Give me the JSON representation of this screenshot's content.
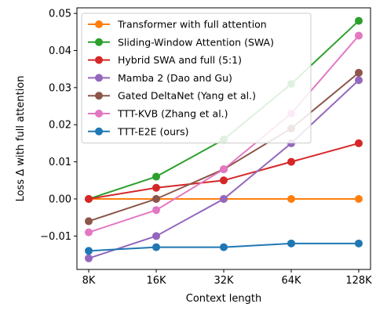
{
  "chart_data": {
    "type": "line",
    "xlabel": "Context length",
    "ylabel": "Loss Δ with full attention",
    "categories": [
      "8K",
      "16K",
      "32K",
      "64K",
      "128K"
    ],
    "ylim": [
      -0.019,
      0.0515
    ],
    "yticks": [
      -0.01,
      0.0,
      0.01,
      0.02,
      0.03,
      0.04,
      0.05
    ],
    "ytick_labels": [
      "−0.01",
      "0.00",
      "0.01",
      "0.02",
      "0.03",
      "0.04",
      "0.05"
    ],
    "grid": false,
    "legend_position": "top-left",
    "series": [
      {
        "name": "Transformer with full attention",
        "color": "#ff7f0e",
        "values": [
          0.0,
          0.0,
          0.0,
          0.0,
          0.0
        ]
      },
      {
        "name": "Sliding-Window Attention (SWA)",
        "color": "#2ca02c",
        "values": [
          0.0,
          0.006,
          0.016,
          0.031,
          0.048
        ]
      },
      {
        "name": "Hybrid SWA and full (5:1)",
        "color": "#d62728",
        "values": [
          0.0,
          0.003,
          0.005,
          0.01,
          0.015
        ]
      },
      {
        "name": "Mamba 2 (Dao and Gu)",
        "color": "#9467bd",
        "values": [
          -0.016,
          -0.01,
          0.0,
          0.015,
          0.032
        ]
      },
      {
        "name": "Gated DeltaNet (Yang et al.)",
        "color": "#8c564b",
        "values": [
          -0.006,
          0.0,
          0.008,
          0.019,
          0.034
        ]
      },
      {
        "name": "TTT-KVB (Zhang et al.)",
        "color": "#e377c2",
        "values": [
          -0.009,
          -0.003,
          0.008,
          0.023,
          0.044
        ]
      },
      {
        "name": "TTT-E2E (ours)",
        "color": "#1f77b4",
        "values": [
          -0.014,
          -0.013,
          -0.013,
          -0.012,
          -0.012
        ]
      }
    ]
  }
}
